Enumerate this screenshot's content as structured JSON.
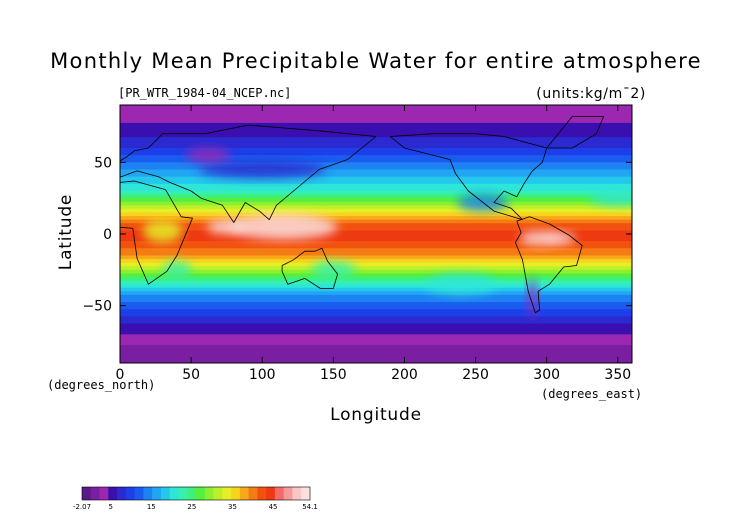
{
  "chart_data": {
    "type": "heatmap",
    "title": "Monthly Mean Precipitable Water for entire atmosphere",
    "subtitle": "[PR_WTR_1984-04_NCEP.nc]",
    "units": "(units:kg/m¯2)",
    "xlabel": "Longitude",
    "ylabel": "Latitude",
    "x_unit_note": "(degrees_east)",
    "y_unit_note": "(degrees_north)",
    "xlim": [
      0,
      360
    ],
    "ylim": [
      -90,
      90
    ],
    "x_ticks": [
      0,
      50,
      100,
      150,
      200,
      250,
      300,
      350
    ],
    "y_ticks": [
      -50,
      0,
      50
    ],
    "colorbar": {
      "min": -2.07,
      "max": 54.1,
      "tick_labels": [
        "-2.07",
        "5",
        "15",
        "25",
        "35",
        "45",
        "54.1"
      ],
      "tick_values": [
        -2.07,
        5,
        15,
        25,
        35,
        45,
        54.1
      ],
      "colors": [
        "#5a1a8a",
        "#7b1fa2",
        "#9c27b0",
        "#3a0fb0",
        "#2a2ad0",
        "#1d3ee8",
        "#1a5cf0",
        "#1e82f2",
        "#21a6f2",
        "#23c8ec",
        "#2ee6d8",
        "#36f0b0",
        "#3ef07a",
        "#55ef3e",
        "#8cf030",
        "#bdf02a",
        "#e6ee26",
        "#f7d21f",
        "#f8a818",
        "#f57c14",
        "#f25210",
        "#ee3a10",
        "#f26a6a",
        "#f59a9a",
        "#f8c6c6",
        "#fbe0e0"
      ]
    },
    "latitude_band_means": {
      "latitudes": [
        -90,
        -80,
        -70,
        -60,
        -50,
        -40,
        -30,
        -20,
        -10,
        0,
        10,
        20,
        30,
        40,
        50,
        60,
        70,
        80,
        90
      ],
      "values": [
        1,
        2,
        4,
        8,
        12,
        17,
        25,
        35,
        42,
        45,
        40,
        30,
        22,
        17,
        13,
        9,
        6,
        4,
        3
      ]
    },
    "grid": false
  }
}
